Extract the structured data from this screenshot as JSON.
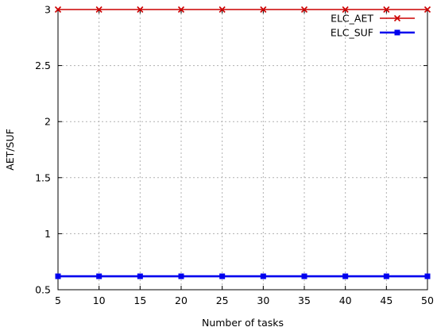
{
  "chart_data": {
    "type": "line",
    "title": "",
    "xlabel": "Number of tasks",
    "ylabel": "AET/SUF",
    "x": [
      5,
      10,
      15,
      20,
      25,
      30,
      35,
      40,
      45,
      50
    ],
    "xlim": [
      5,
      50
    ],
    "ylim": [
      0.5,
      3
    ],
    "xticks": [
      "5",
      "10",
      "15",
      "20",
      "25",
      "30",
      "35",
      "40",
      "45",
      "50"
    ],
    "yticks": [
      "0.5",
      "1",
      "1.5",
      "2",
      "2.5",
      "3"
    ],
    "grid": true,
    "legend_position": "top-right",
    "series": [
      {
        "name": "ELC_AET",
        "color": "#cc0000",
        "marker": "x",
        "values": [
          3,
          3,
          3,
          3,
          3,
          3,
          3,
          3,
          3,
          3
        ]
      },
      {
        "name": "ELC_SUF",
        "color": "#0000ee",
        "marker": "square",
        "values": [
          0.62,
          0.62,
          0.62,
          0.62,
          0.62,
          0.62,
          0.62,
          0.62,
          0.62,
          0.62
        ]
      }
    ]
  }
}
